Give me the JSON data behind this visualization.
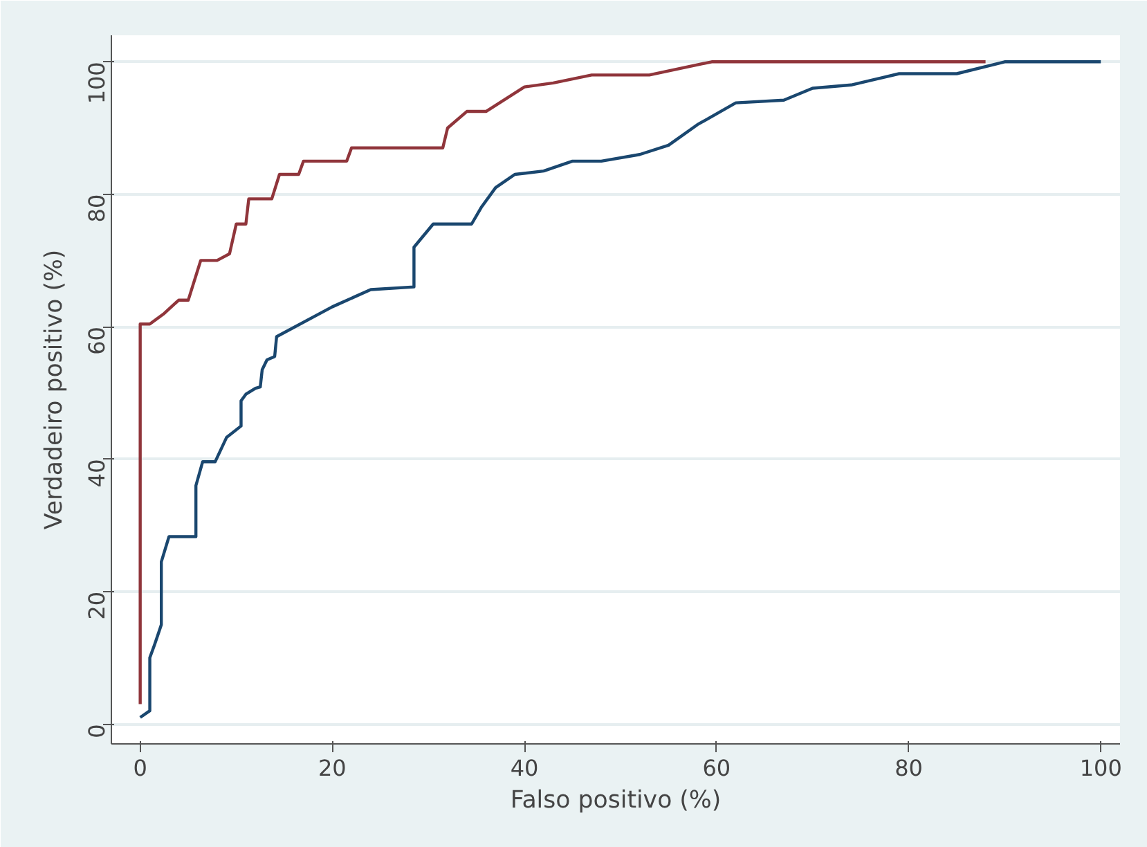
{
  "chart_data": {
    "type": "line",
    "xlabel": "Falso positivo (%)",
    "ylabel": "Verdadeiro positivo (%)",
    "xlim": [
      -3,
      102
    ],
    "ylim": [
      -3,
      104
    ],
    "xticks": [
      0,
      20,
      40,
      60,
      80,
      100
    ],
    "yticks": [
      0,
      20,
      40,
      60,
      80,
      100
    ],
    "grid": "y",
    "marker": "none",
    "line_style": "solid",
    "series": [
      {
        "color": "#90353b",
        "x": [
          0,
          0,
          1,
          2.5,
          4,
          5,
          6.3,
          8,
          9.3,
          10,
          11,
          11.3,
          13.7,
          14.5,
          16.5,
          17,
          21.5,
          22,
          31.5,
          32,
          34,
          36,
          40,
          43,
          47,
          53,
          59.5,
          88
        ],
        "values": [
          3,
          60.4,
          60.4,
          62,
          64,
          64,
          70,
          70,
          71,
          75.5,
          75.5,
          79.3,
          79.3,
          83,
          83,
          85,
          85,
          87,
          87,
          90,
          92.5,
          92.5,
          96.2,
          96.8,
          98,
          98,
          100,
          100
        ]
      },
      {
        "color": "#1a476f",
        "x": [
          0,
          1,
          1,
          1.5,
          2.2,
          2.2,
          3,
          5.8,
          5.8,
          6.5,
          7.8,
          9,
          10.5,
          10.5,
          11,
          12,
          12.5,
          12.7,
          13.2,
          14,
          14.2,
          20,
          24,
          28.5,
          28.5,
          30.5,
          34.5,
          35.5,
          37,
          39,
          42,
          45,
          48,
          52,
          55,
          58,
          62,
          67,
          70,
          74,
          79,
          85,
          90,
          100
        ],
        "values": [
          1,
          2,
          10,
          12,
          15,
          24.5,
          28.3,
          28.3,
          36,
          39.6,
          39.6,
          43.3,
          45,
          48.8,
          49.8,
          50.7,
          50.9,
          53.5,
          55,
          55.5,
          58.5,
          63,
          65.6,
          66,
          72,
          75.5,
          75.5,
          78,
          81,
          83,
          83.5,
          85,
          85,
          86,
          87.4,
          90.5,
          93.8,
          94.2,
          96,
          96.5,
          98.2,
          98.2,
          100,
          100
        ]
      }
    ]
  }
}
